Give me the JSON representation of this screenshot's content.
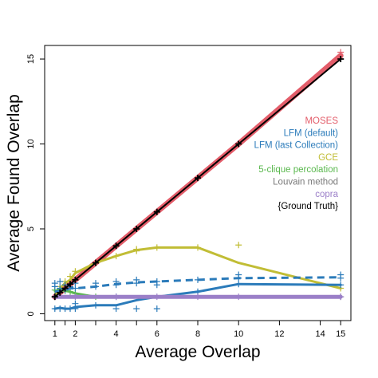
{
  "chart_data": {
    "type": "line",
    "xlabel": "Average Overlap",
    "ylabel": "Average Found Overlap",
    "xlim": [
      0.5,
      15.5
    ],
    "ylim": [
      -0.4,
      15.8
    ],
    "x_ticks": [
      1,
      2,
      4,
      6,
      8,
      10,
      12,
      14,
      15
    ],
    "x_minor_ticks": [
      1.5,
      3,
      5
    ],
    "y_ticks": [
      0,
      5,
      10,
      15
    ],
    "grid": false,
    "legend_position": "right",
    "series": [
      {
        "name": "MOSES",
        "color": "#e35d6a",
        "line_style": "solid",
        "line_width": 7,
        "x": [
          1,
          1.5,
          2,
          3,
          4,
          5,
          6,
          8,
          10,
          15
        ],
        "y": [
          1.0,
          1.5,
          2.0,
          3.0,
          4.0,
          5.0,
          6.0,
          8.0,
          10.0,
          15.2
        ],
        "points_x": [
          1,
          1.25,
          1.5,
          1.75,
          2,
          3,
          4,
          5,
          6,
          8,
          10,
          15,
          15
        ],
        "points_y": [
          1.0,
          1.25,
          1.5,
          1.75,
          2.0,
          3.0,
          4.0,
          5.0,
          6.0,
          8.0,
          10.0,
          15.0,
          15.4
        ]
      },
      {
        "name": "LFM (default)",
        "color": "#2b7bba",
        "line_style": "solid",
        "line_width": 3,
        "x": [
          1,
          1.25,
          1.5,
          1.75,
          2,
          3,
          4,
          5,
          6,
          8,
          10,
          15
        ],
        "y": [
          0.3,
          0.35,
          0.3,
          0.3,
          0.4,
          0.5,
          0.5,
          0.8,
          1.0,
          1.3,
          1.75,
          1.7
        ],
        "points_x": [
          1,
          1.25,
          1.5,
          1.75,
          2,
          2,
          3,
          4,
          4,
          5,
          6,
          8,
          10,
          15
        ],
        "points_y": [
          0.3,
          0.3,
          0.3,
          0.3,
          0.3,
          0.6,
          0.5,
          0.3,
          1.0,
          0.3,
          0.3,
          1.3,
          1.75,
          1.7
        ]
      },
      {
        "name": "LFM (last Collection)",
        "color": "#2b7bba",
        "line_style": "dashed",
        "line_width": 3,
        "x": [
          1,
          1.25,
          1.5,
          1.75,
          2,
          3,
          4,
          5,
          6,
          8,
          10,
          15
        ],
        "y": [
          1.3,
          1.35,
          1.4,
          1.5,
          1.5,
          1.6,
          1.75,
          1.85,
          1.9,
          2.0,
          2.1,
          2.15
        ],
        "points_x": [
          1,
          1,
          1.25,
          1.25,
          1.5,
          1.5,
          1.75,
          2,
          2,
          3,
          3,
          4,
          4,
          5,
          5,
          6,
          6,
          8,
          10,
          10,
          15,
          15
        ],
        "points_y": [
          1.6,
          1.8,
          1.5,
          1.9,
          1.7,
          1.4,
          1.6,
          1.5,
          1.8,
          1.6,
          1.8,
          1.9,
          1.7,
          1.8,
          2.0,
          1.9,
          1.7,
          2.0,
          2.1,
          2.3,
          2.1,
          2.3
        ]
      },
      {
        "name": "GCE",
        "color": "#c1bd35",
        "line_style": "solid",
        "line_width": 3,
        "x": [
          1,
          1.25,
          1.5,
          1.75,
          2,
          3,
          4,
          5,
          6,
          8,
          10,
          15
        ],
        "y": [
          1.0,
          1.5,
          1.8,
          2.0,
          2.4,
          3.0,
          3.4,
          3.75,
          3.9,
          3.9,
          3.0,
          1.5
        ],
        "points_x": [
          1,
          1.25,
          1.5,
          1.75,
          2,
          3,
          4,
          5,
          5,
          6,
          8,
          10,
          15
        ],
        "points_y": [
          1.0,
          1.6,
          1.9,
          2.2,
          2.5,
          3.0,
          3.4,
          3.7,
          3.8,
          3.9,
          3.9,
          4.05,
          1.5
        ]
      },
      {
        "name": "5-clique percolation",
        "color": "#5ab84e",
        "line_style": "solid",
        "line_width": 3,
        "x": [
          1,
          1.25,
          1.5,
          1.75,
          2,
          2.5,
          3
        ],
        "y": [
          1.35,
          1.4,
          1.35,
          1.3,
          1.2,
          1.1,
          1.0
        ],
        "points_x": [
          1,
          1.25,
          1.5,
          1.75,
          2,
          3
        ],
        "points_y": [
          1.4,
          1.45,
          1.35,
          1.3,
          1.2,
          1.0
        ]
      },
      {
        "name": "Louvain method",
        "color": "#7a7a7a",
        "line_style": "solid",
        "line_width": 3,
        "x": [
          1,
          15
        ],
        "y": [
          1.0,
          1.0
        ],
        "points_x": [
          1,
          15
        ],
        "points_y": [
          1.0,
          1.0
        ]
      },
      {
        "name": "copra",
        "color": "#9b7fc8",
        "line_style": "solid",
        "line_width": 5,
        "x": [
          1,
          15
        ],
        "y": [
          1.0,
          1.0
        ],
        "points_x": [
          1,
          2,
          4,
          6,
          8,
          10,
          15
        ],
        "points_y": [
          1.0,
          1.0,
          1.0,
          1.0,
          1.0,
          1.0,
          1.0
        ]
      },
      {
        "name": "{Ground Truth}",
        "color": "#000000",
        "line_style": "solid",
        "line_width": 2,
        "x": [
          1,
          1.25,
          1.5,
          1.75,
          2,
          3,
          4,
          5,
          6,
          8,
          10,
          15
        ],
        "y": [
          1,
          1.25,
          1.5,
          1.75,
          2,
          3,
          4,
          5,
          6,
          8,
          10,
          15
        ],
        "points_x": [
          1,
          1.25,
          1.5,
          1.75,
          2,
          3,
          4,
          5,
          6,
          8,
          10,
          15
        ],
        "points_y": [
          1,
          1.25,
          1.5,
          1.75,
          2,
          3,
          4,
          5,
          6,
          8,
          10,
          15
        ]
      }
    ]
  }
}
